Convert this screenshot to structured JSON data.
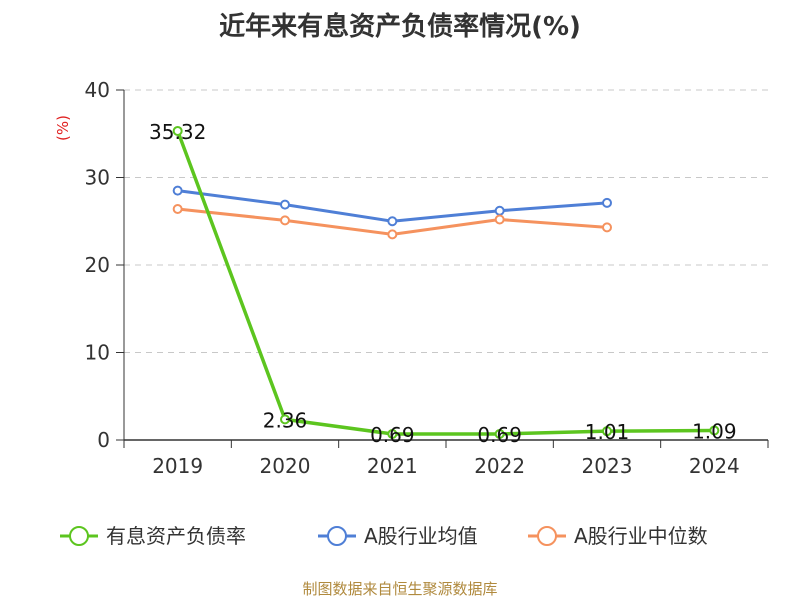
{
  "chart_data": {
    "type": "line",
    "title": "近年来有息资产负债率情况(%)",
    "ylabel": "(%)",
    "xlabel": "",
    "categories": [
      "2019",
      "2020",
      "2021",
      "2022",
      "2023",
      "2024"
    ],
    "ylim": [
      0,
      40
    ],
    "yticks": [
      0,
      10,
      20,
      30,
      40
    ],
    "grid": true,
    "legend_position": "bottom",
    "series": [
      {
        "name": "有息资产负债率",
        "color": "#5cc51f",
        "values": [
          35.32,
          2.36,
          0.69,
          0.69,
          1.01,
          1.09
        ],
        "labels": [
          "35.32",
          "2.36",
          "0.69",
          "0.69",
          "1.01",
          "1.09"
        ]
      },
      {
        "name": "A股行业均值",
        "color": "#4f7fd6",
        "values": [
          28.5,
          26.9,
          25.0,
          26.2,
          27.1,
          null
        ]
      },
      {
        "name": "A股行业中位数",
        "color": "#f5925e",
        "values": [
          26.4,
          25.1,
          23.5,
          25.2,
          24.3,
          null
        ]
      }
    ]
  },
  "source_text": "制图数据来自恒生聚源数据库"
}
